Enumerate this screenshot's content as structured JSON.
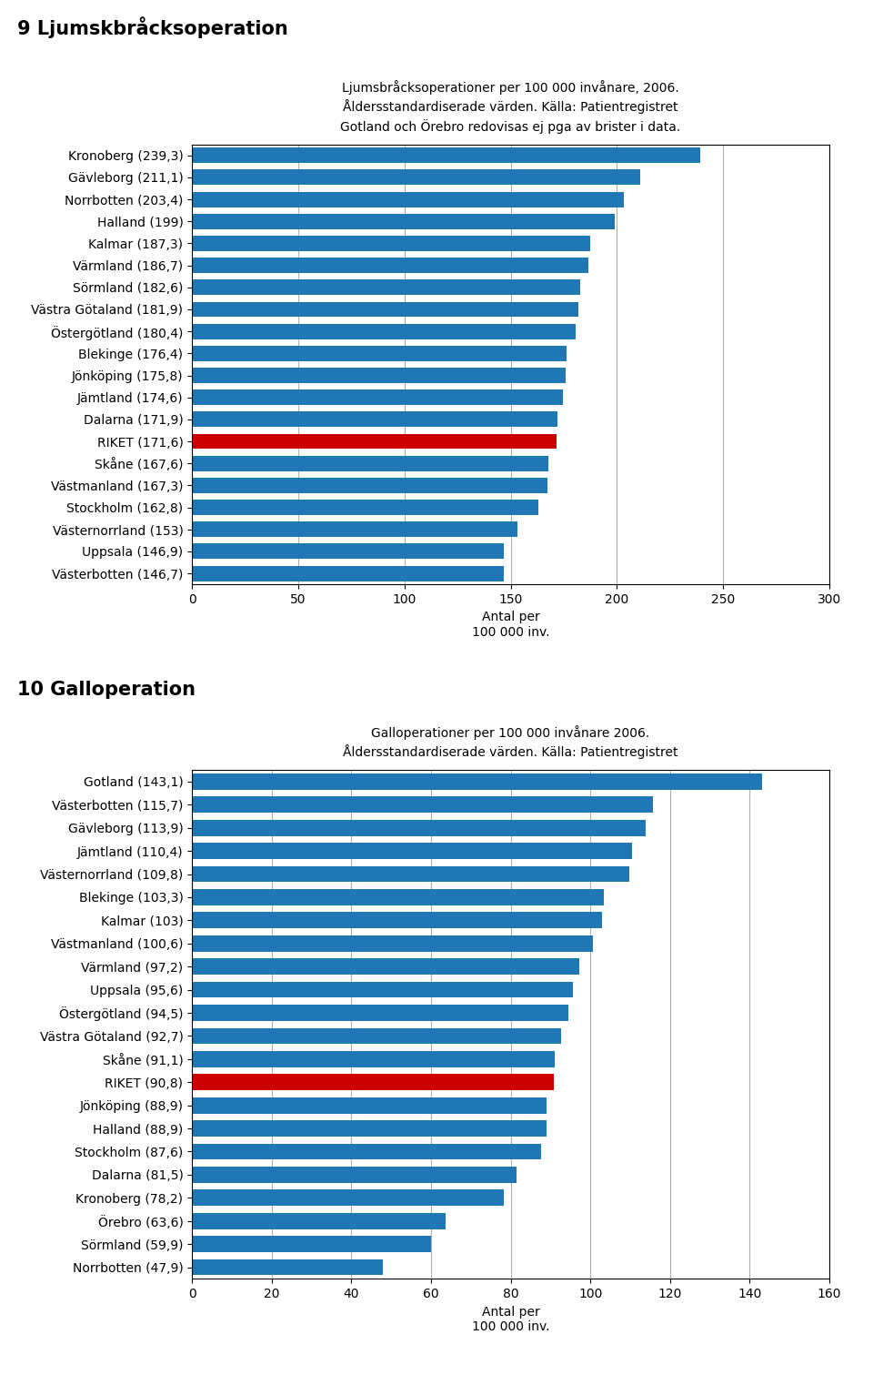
{
  "chart_data": [
    {
      "type": "bar",
      "orientation": "horizontal",
      "title": "9 Ljumskbråcksoperation",
      "subtitle": "Ljumsbråcksoperationer per 100 000 invånare, 2006.\nÅldersstandardiserade värden. Källa: Patientregistret\nGotland och Örebro redovisas ej pga av brister i data.",
      "xlabel": "Antal per\n100 000 inv.",
      "categories": [
        "Kronoberg (239,3)",
        "Gävleborg (211,1)",
        "Norrbotten (203,4)",
        "Halland (199)",
        "Kalmar (187,3)",
        "Värmland (186,7)",
        "Sörmland (182,6)",
        "Västra Götaland (181,9)",
        "Östergötland (180,4)",
        "Blekinge (176,4)",
        "Jönköping (175,8)",
        "Jämtland (174,6)",
        "Dalarna (171,9)",
        "RIKET (171,6)",
        "Skåne (167,6)",
        "Västmanland (167,3)",
        "Stockholm (162,8)",
        "Västernorrland (153)",
        "Uppsala (146,9)",
        "Västerbotten (146,7)"
      ],
      "values": [
        239.3,
        211.1,
        203.4,
        199,
        187.3,
        186.7,
        182.6,
        181.9,
        180.4,
        176.4,
        175.8,
        174.6,
        171.9,
        171.6,
        167.6,
        167.3,
        162.8,
        153,
        146.9,
        146.7
      ],
      "colors": [
        "#1f77b4",
        "#1f77b4",
        "#1f77b4",
        "#1f77b4",
        "#1f77b4",
        "#1f77b4",
        "#1f77b4",
        "#1f77b4",
        "#1f77b4",
        "#1f77b4",
        "#1f77b4",
        "#1f77b4",
        "#1f77b4",
        "#CC0000",
        "#1f77b4",
        "#1f77b4",
        "#1f77b4",
        "#1f77b4",
        "#1f77b4",
        "#1f77b4"
      ],
      "xlim": [
        0,
        300
      ],
      "xticks": [
        0,
        50,
        100,
        150,
        200,
        250,
        300
      ],
      "grid": true
    },
    {
      "type": "bar",
      "orientation": "horizontal",
      "title": "10 Galloperation",
      "subtitle": "Galloperationer per 100 000 invånare 2006.\nÅldersstandardiserade värden. Källa: Patientregistret",
      "xlabel": "Antal per\n100 000 inv.",
      "categories": [
        "Gotland (143,1)",
        "Västerbotten (115,7)",
        "Gävleborg (113,9)",
        "Jämtland (110,4)",
        "Västernorrland (109,8)",
        "Blekinge (103,3)",
        "Kalmar (103)",
        "Västmanland (100,6)",
        "Värmland (97,2)",
        "Uppsala (95,6)",
        "Östergötland (94,5)",
        "Västra Götaland (92,7)",
        "Skåne (91,1)",
        "RIKET (90,8)",
        "Jönköping (88,9)",
        "Halland (88,9)",
        "Stockholm (87,6)",
        "Dalarna (81,5)",
        "Kronoberg (78,2)",
        "Örebro (63,6)",
        "Sörmland (59,9)",
        "Norrbotten (47,9)"
      ],
      "values": [
        143.1,
        115.7,
        113.9,
        110.4,
        109.8,
        103.3,
        103,
        100.6,
        97.2,
        95.6,
        94.5,
        92.7,
        91.1,
        90.8,
        88.9,
        88.9,
        87.6,
        81.5,
        78.2,
        63.6,
        59.9,
        47.9
      ],
      "colors": [
        "#1f77b4",
        "#1f77b4",
        "#1f77b4",
        "#1f77b4",
        "#1f77b4",
        "#1f77b4",
        "#1f77b4",
        "#1f77b4",
        "#1f77b4",
        "#1f77b4",
        "#1f77b4",
        "#1f77b4",
        "#1f77b4",
        "#CC0000",
        "#1f77b4",
        "#1f77b4",
        "#1f77b4",
        "#1f77b4",
        "#1f77b4",
        "#1f77b4",
        "#1f77b4",
        "#1f77b4"
      ],
      "xlim": [
        0,
        160
      ],
      "xticks": [
        0,
        20,
        40,
        60,
        80,
        100,
        120,
        140,
        160
      ],
      "grid": true
    }
  ]
}
